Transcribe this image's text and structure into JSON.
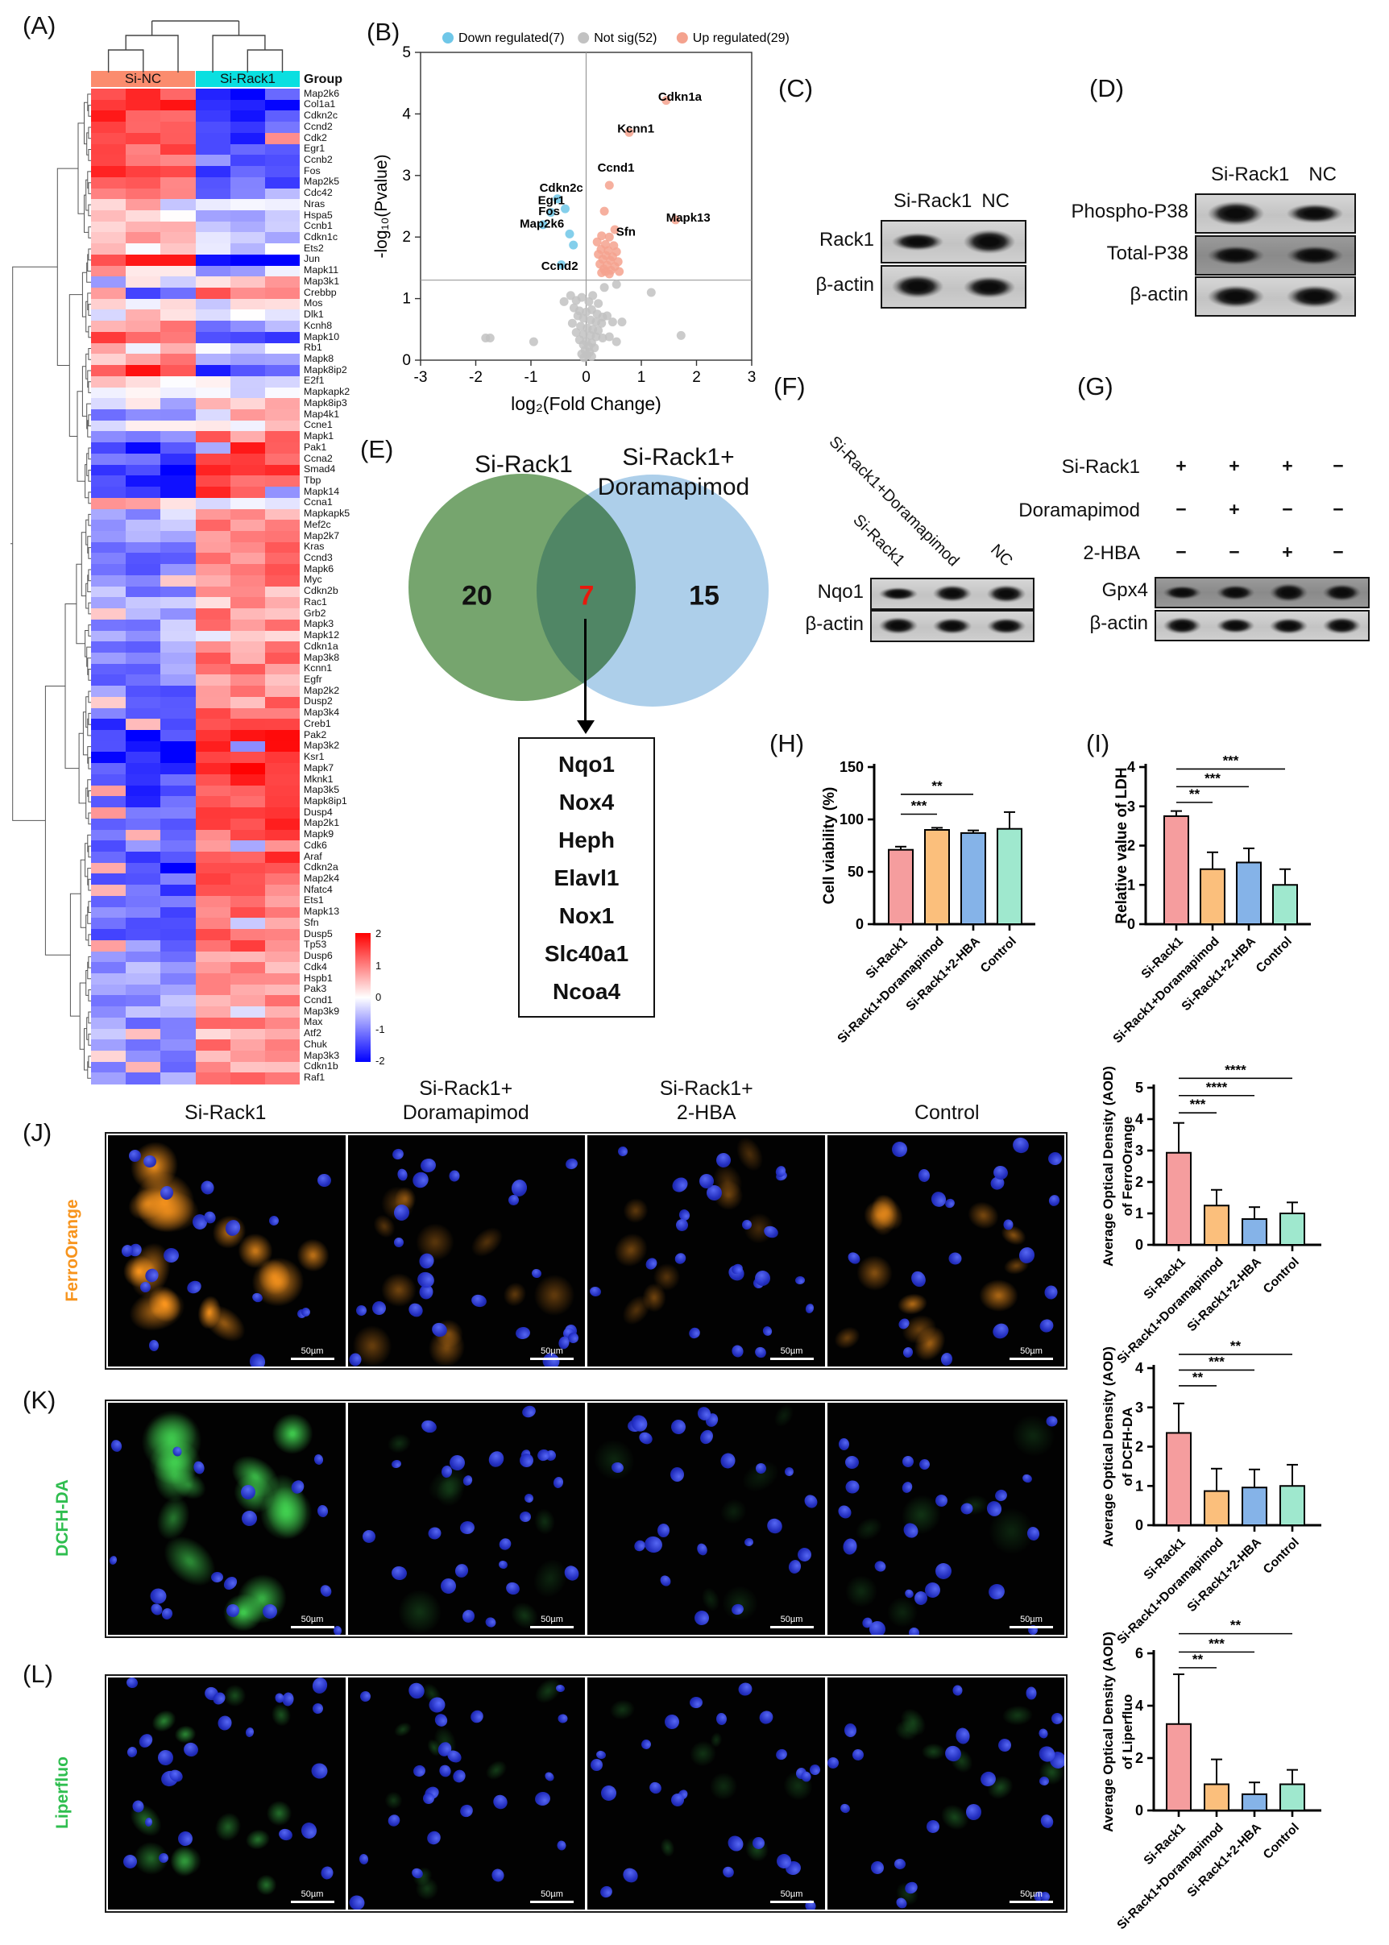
{
  "panels": {
    "a": "(A)",
    "b": "(B)",
    "c": "(C)",
    "d": "(D)",
    "e": "(E)",
    "f": "(F)",
    "g": "(G)",
    "h": "(H)",
    "i": "(I)",
    "j": "(J)",
    "k": "(K)",
    "l": "(L)"
  },
  "heatmap": {
    "group_label": "Group",
    "groups": [
      {
        "label": "Si-NC",
        "color": "#FB8C6E"
      },
      {
        "label": "Si-Rack1",
        "color": "#0ADFE0"
      }
    ],
    "colorbar_ticks": [
      "2",
      "1",
      "0",
      "-1",
      "-2"
    ],
    "colorbar_colors": {
      "high": "#FF0000",
      "mid": "#FFFFFF",
      "low": "#0000FF"
    }
  },
  "bar_categories": [
    "Si-Rack1",
    "Si-Rack1+Doramapimod",
    "Si-Rack1+2-HBA",
    "Control"
  ],
  "bar_colors": [
    "#F59D9E",
    "#FBBF7C",
    "#85B3E8",
    "#9FE8CE"
  ],
  "chart_data": [
    {
      "id": "A",
      "type": "heatmap",
      "title": "",
      "col_groups": [
        "Si-NC",
        "Si-Rack1"
      ],
      "colorbar_range": [
        -2,
        2
      ],
      "genes": [
        "Map2k6",
        "Col1a1",
        "Cdkn2c",
        "Ccnd2",
        "Cdk2",
        "Egr1",
        "Ccnb2",
        "Fos",
        "Map2k5",
        "Cdc42",
        "Nras",
        "Hspa5",
        "Ccnb1",
        "Cdkn1c",
        "Ets2",
        "Jun",
        "Mapk11",
        "Map3k1",
        "Crebbp",
        "Mos",
        "Dlk1",
        "Kcnh8",
        "Mapk10",
        "Rb1",
        "Mapk8",
        "Mapk8ip2",
        "E2f1",
        "Mapkapk2",
        "Mapk8ip3",
        "Map4k1",
        "Ccne1",
        "Mapk1",
        "Pak1",
        "Ccna2",
        "Smad4",
        "Tbp",
        "Mapk14",
        "Ccna1",
        "Mapkapk5",
        "Mef2c",
        "Map2k7",
        "Kras",
        "Ccnd3",
        "Mapk6",
        "Myc",
        "Cdkn2b",
        "Rac1",
        "Grb2",
        "Mapk3",
        "Mapk12",
        "Cdkn1a",
        "Map3k8",
        "Kcnn1",
        "Egfr",
        "Map2k2",
        "Dusp2",
        "Map3k4",
        "Creb1",
        "Pak2",
        "Map3k2",
        "Ksr1",
        "Mapk7",
        "Mknk1",
        "Map3k5",
        "Mapk8ip1",
        "Dusp4",
        "Map2k1",
        "Mapk9",
        "Cdk6",
        "Araf",
        "Cdkn2a",
        "Map2k4",
        "Nfatc4",
        "Ets1",
        "Mapk13",
        "Sfn",
        "Dusp5",
        "Tp53",
        "Dusp6",
        "Cdk4",
        "Hspb1",
        "Pak3",
        "Ccnd1",
        "Map3k9",
        "Max",
        "Atf2",
        "Chuk",
        "Map3k3",
        "Cdkn1b",
        "Raf1"
      ],
      "si_rack1_trend": [
        -1.6,
        -1.6,
        -1.5,
        -1.4,
        -1.5,
        -1.3,
        -1.2,
        -1.5,
        -1.3,
        -0.9,
        -0.5,
        -0.4,
        -0.6,
        -0.5,
        -0.4,
        -1.8,
        -0.5,
        0.4,
        1.2,
        0.0,
        -0.2,
        -0.8,
        -1.2,
        -0.3,
        -0.8,
        -1.5,
        -0.1,
        -0.3,
        0.4,
        0.7,
        0.2,
        0.9,
        1.6,
        1.4,
        1.8,
        1.5,
        1.6,
        -0.4,
        0.6,
        0.8,
        0.9,
        1.1,
        0.9,
        1.0,
        0.9,
        0.8,
        0.6,
        0.9,
        0.8,
        0.5,
        1.0,
        0.9,
        1.0,
        0.9,
        1.0,
        0.9,
        1.0,
        1.3,
        1.7,
        1.8,
        1.8,
        1.6,
        1.5,
        1.4,
        1.3,
        1.2,
        1.5,
        1.3,
        1.2,
        1.4,
        1.7,
        1.3,
        1.2,
        1.1,
        1.2,
        1.1,
        1.2,
        1.1,
        1.0,
        0.9,
        0.9,
        0.8,
        0.9,
        0.8,
        1.0,
        0.7,
        0.8,
        0.9,
        0.9,
        1.0
      ]
    },
    {
      "id": "B",
      "type": "scatter",
      "xlabel": "log₂(Fold Change)",
      "ylabel": "-log₁₀(Pvalue)",
      "xlim": [
        -3,
        3
      ],
      "ylim": [
        0,
        5
      ],
      "xticks": [
        "-3",
        "-2",
        "-1",
        "0",
        "1",
        "2",
        "3"
      ],
      "yticks": [
        "0",
        "1",
        "2",
        "3",
        "4",
        "5"
      ],
      "threshold_y": 1.3,
      "legend": [
        {
          "label": "Down regulated(7)",
          "color": "#6FC7E8"
        },
        {
          "label": "Not sig(52)",
          "color": "#C2C2C2"
        },
        {
          "label": "Up regulated(29)",
          "color": "#F4A28E"
        }
      ],
      "gene_labels": [
        {
          "t": "Cdkn1a",
          "x": 1.7,
          "y": 4.28
        },
        {
          "t": "Kcnn1",
          "x": 0.9,
          "y": 3.76
        },
        {
          "t": "Ccnd1",
          "x": 0.54,
          "y": 3.13
        },
        {
          "t": "Mapk13",
          "x": 1.85,
          "y": 2.32
        },
        {
          "t": "Sfn",
          "x": 0.72,
          "y": 2.09
        },
        {
          "t": "Cdkn2c",
          "x": -0.45,
          "y": 2.8
        },
        {
          "t": "Egr1",
          "x": -0.63,
          "y": 2.6
        },
        {
          "t": "Fos",
          "x": -0.67,
          "y": 2.42
        },
        {
          "t": "Map2k6",
          "x": -0.8,
          "y": 2.22
        },
        {
          "t": "Ccnd2",
          "x": -0.48,
          "y": 1.53
        }
      ],
      "series": {
        "up": [
          [
            1.45,
            4.22
          ],
          [
            0.78,
            3.7
          ],
          [
            0.42,
            2.84
          ],
          [
            0.33,
            2.42
          ],
          [
            1.62,
            2.28
          ],
          [
            0.52,
            2.12
          ],
          [
            0.28,
            2.02
          ],
          [
            0.42,
            2.0
          ],
          [
            0.2,
            1.92
          ],
          [
            0.35,
            1.88
          ],
          [
            0.5,
            1.86
          ],
          [
            0.27,
            1.8
          ],
          [
            0.4,
            1.78
          ],
          [
            0.55,
            1.76
          ],
          [
            0.22,
            1.72
          ],
          [
            0.36,
            1.7
          ],
          [
            0.48,
            1.68
          ],
          [
            0.3,
            1.64
          ],
          [
            0.44,
            1.62
          ],
          [
            0.58,
            1.6
          ],
          [
            0.25,
            1.56
          ],
          [
            0.38,
            1.54
          ],
          [
            0.52,
            1.52
          ],
          [
            0.32,
            1.48
          ],
          [
            0.45,
            1.46
          ],
          [
            0.6,
            1.44
          ],
          [
            0.28,
            1.42
          ],
          [
            0.42,
            1.4
          ],
          [
            0.35,
            1.44
          ]
        ],
        "down": [
          [
            -0.38,
            2.46
          ],
          [
            -0.23,
            1.87
          ],
          [
            -0.52,
            2.62
          ],
          [
            -0.64,
            2.4
          ],
          [
            -0.78,
            2.2
          ],
          [
            -0.45,
            1.55
          ],
          [
            -0.3,
            2.05
          ]
        ],
        "notsig": [
          [
            -1.82,
            0.36
          ],
          [
            -1.74,
            0.36
          ],
          [
            -0.95,
            0.3
          ],
          [
            1.72,
            0.4
          ],
          [
            1.18,
            1.1
          ],
          [
            0.55,
            1.23
          ],
          [
            0.33,
            1.18
          ],
          [
            -0.4,
            0.95
          ],
          [
            -0.28,
            1.05
          ],
          [
            -0.18,
            0.97
          ],
          [
            -0.08,
            1.02
          ],
          [
            0.05,
            0.95
          ],
          [
            0.12,
            1.05
          ],
          [
            0.22,
            0.92
          ],
          [
            -0.22,
            0.85
          ],
          [
            -0.12,
            0.8
          ],
          [
            0.0,
            0.78
          ],
          [
            0.1,
            0.82
          ],
          [
            0.2,
            0.75
          ],
          [
            0.3,
            0.7
          ],
          [
            -0.15,
            0.72
          ],
          [
            -0.05,
            0.68
          ],
          [
            0.08,
            0.65
          ],
          [
            0.18,
            0.62
          ],
          [
            0.28,
            0.6
          ],
          [
            0.38,
            0.72
          ],
          [
            0.48,
            0.62
          ],
          [
            0.65,
            0.62
          ],
          [
            -0.25,
            0.6
          ],
          [
            -0.1,
            0.55
          ],
          [
            0.02,
            0.52
          ],
          [
            0.12,
            0.5
          ],
          [
            0.22,
            0.48
          ],
          [
            -0.18,
            0.45
          ],
          [
            -0.05,
            0.42
          ],
          [
            0.08,
            0.4
          ],
          [
            0.18,
            0.38
          ],
          [
            0.3,
            0.36
          ],
          [
            0.42,
            0.38
          ],
          [
            -0.12,
            0.33
          ],
          [
            0.0,
            0.3
          ],
          [
            0.1,
            0.28
          ],
          [
            -0.05,
            0.25
          ],
          [
            0.05,
            0.22
          ],
          [
            0.15,
            0.2
          ],
          [
            -0.02,
            0.16
          ],
          [
            0.06,
            0.13
          ],
          [
            -0.08,
            0.1
          ],
          [
            0.02,
            0.08
          ],
          [
            0.1,
            0.06
          ],
          [
            -0.04,
            0.04
          ],
          [
            0.55,
            0.3
          ]
        ]
      }
    },
    {
      "id": "H",
      "type": "bar",
      "ylabel": "Cell viability (%)",
      "categories": [
        "Si-Rack1",
        "Si-Rack1+Doramapimod",
        "Si-Rack1+2-HBA",
        "Control"
      ],
      "values": [
        71,
        90,
        87,
        91
      ],
      "errors": [
        3,
        2,
        2.5,
        16
      ],
      "ylim": [
        0,
        150
      ],
      "yticks": [
        0,
        50,
        100,
        150
      ],
      "sig": [
        {
          "a": 0,
          "b": 1,
          "label": "***",
          "y": 105
        },
        {
          "a": 0,
          "b": 2,
          "label": "**",
          "y": 124
        }
      ]
    },
    {
      "id": "I",
      "type": "bar",
      "ylabel": "Relative value of LDH",
      "categories": [
        "Si-Rack1",
        "Si-Rack1+Doramapimod",
        "Si-Rack1+2-HBA",
        "Control"
      ],
      "values": [
        2.75,
        1.4,
        1.57,
        1.0
      ],
      "errors": [
        0.13,
        0.43,
        0.36,
        0.4
      ],
      "ylim": [
        0,
        4
      ],
      "yticks": [
        0,
        1,
        2,
        3,
        4
      ],
      "sig": [
        {
          "a": 0,
          "b": 1,
          "label": "**",
          "y": 3.1
        },
        {
          "a": 0,
          "b": 2,
          "label": "***",
          "y": 3.5
        },
        {
          "a": 0,
          "b": 3,
          "label": "***",
          "y": 3.95
        }
      ]
    },
    {
      "id": "J",
      "type": "bar",
      "ylabel": [
        "Average Optical Density (AOD)",
        "of FerroOrange"
      ],
      "categories": [
        "Si-Rack1",
        "Si-Rack1+Doramapimod",
        "Si-Rack1+2-HBA",
        "Control"
      ],
      "values": [
        2.93,
        1.25,
        0.82,
        1.0
      ],
      "errors": [
        0.95,
        0.5,
        0.38,
        0.35
      ],
      "ylim": [
        0,
        5
      ],
      "yticks": [
        0,
        1,
        2,
        3,
        4,
        5
      ],
      "sig": [
        {
          "a": 0,
          "b": 1,
          "label": "***",
          "y": 4.2
        },
        {
          "a": 0,
          "b": 2,
          "label": "****",
          "y": 4.75
        },
        {
          "a": 0,
          "b": 3,
          "label": "****",
          "y": 5.3
        }
      ]
    },
    {
      "id": "K",
      "type": "bar",
      "ylabel": [
        "Average Optical Density (AOD)",
        "of DCFH-DA"
      ],
      "categories": [
        "Si-Rack1",
        "Si-Rack1+Doramapimod",
        "Si-Rack1+2-HBA",
        "Control"
      ],
      "values": [
        2.35,
        0.87,
        0.96,
        1.0
      ],
      "errors": [
        0.75,
        0.57,
        0.46,
        0.54
      ],
      "ylim": [
        0,
        4
      ],
      "yticks": [
        0,
        1,
        2,
        3,
        4
      ],
      "sig": [
        {
          "a": 0,
          "b": 1,
          "label": "**",
          "y": 3.55
        },
        {
          "a": 0,
          "b": 2,
          "label": "***",
          "y": 3.95
        },
        {
          "a": 0,
          "b": 3,
          "label": "**",
          "y": 4.35
        }
      ]
    },
    {
      "id": "L",
      "type": "bar",
      "ylabel": [
        "Average Optical Density (AOD)",
        "of Liperfluo"
      ],
      "categories": [
        "Si-Rack1",
        "Si-Rack1+Doramapimod",
        "Si-Rack1+2-HBA",
        "Control"
      ],
      "values": [
        3.3,
        1.0,
        0.62,
        1.0
      ],
      "errors": [
        1.9,
        0.95,
        0.45,
        0.55
      ],
      "ylim": [
        0,
        6
      ],
      "yticks": [
        0,
        2,
        4,
        6
      ],
      "sig": [
        {
          "a": 0,
          "b": 1,
          "label": "**",
          "y": 5.45
        },
        {
          "a": 0,
          "b": 2,
          "label": "***",
          "y": 6.05
        },
        {
          "a": 0,
          "b": 3,
          "label": "**",
          "y": 6.75
        }
      ]
    }
  ],
  "wb": {
    "c": {
      "header": [
        "Si-Rack1",
        "NC"
      ],
      "rows": [
        {
          "label": "Rack1",
          "bands": [
            0.8,
            1.15
          ]
        },
        {
          "label": "β-actin",
          "bands": [
            1.1,
            1.0
          ]
        }
      ]
    },
    "d": {
      "header": [
        "Si-Rack1",
        "NC"
      ],
      "rows": [
        {
          "label": "Phospho-P38",
          "bands": [
            1.2,
            0.9
          ]
        },
        {
          "label": "Total-P38",
          "bands": [
            0.9,
            0.95
          ],
          "dark": true
        },
        {
          "label": "β-actin",
          "bands": [
            1.15,
            1.1
          ]
        }
      ]
    },
    "f": {
      "lanes": [
        "Si-Rack1",
        "Si-Rack1+Doramapimod",
        "NC"
      ],
      "rows": [
        {
          "label": "Nqo1",
          "bands": [
            0.7,
            1.0,
            1.05
          ]
        },
        {
          "label": "β-actin",
          "bands": [
            1.0,
            0.95,
            0.9
          ]
        }
      ]
    },
    "g": {
      "table": [
        {
          "label": "Si-Rack1",
          "cells": [
            "+",
            "+",
            "+",
            "−"
          ]
        },
        {
          "label": "Doramapimod",
          "cells": [
            "−",
            "+",
            "−",
            "−"
          ]
        },
        {
          "label": "2-HBA",
          "cells": [
            "−",
            "−",
            "+",
            "−"
          ]
        }
      ],
      "rows": [
        {
          "label": "Gpx4",
          "bands": [
            0.7,
            0.9,
            1.1,
            1.0
          ],
          "dark": true
        },
        {
          "label": "β-actin",
          "bands": [
            1.0,
            0.9,
            0.95,
            1.0
          ]
        }
      ]
    }
  },
  "venn": {
    "left_label": "Si-Rack1",
    "right_label_1": "Si-Rack1+",
    "right_label_2": "Doramapimod",
    "left_count": "20",
    "overlap_count": "7",
    "right_count": "15",
    "left_color": "rgba(111,160,102,0.95)",
    "right_color": "rgba(169,204,233,0.95)",
    "overlap_count_color": "#E8190C",
    "genes": [
      "Nqo1",
      "Nox4",
      "Heph",
      "Elavl1",
      "Nox1",
      "Slc40a1",
      "Ncoa4"
    ]
  },
  "microscopy": {
    "col_headers": [
      [
        "Si-Rack1"
      ],
      [
        "Si-Rack1+",
        "Doramapimod"
      ],
      [
        "Si-Rack1+",
        "2-HBA"
      ],
      [
        "Control"
      ]
    ],
    "rows": [
      {
        "panel": "J",
        "label": "FerroOrange",
        "label_color": "#F7941D",
        "stain": "orange"
      },
      {
        "panel": "K",
        "label": "DCFH-DA",
        "label_color": "#2FBE4F",
        "stain": "green"
      },
      {
        "panel": "L",
        "label": "Liperfluo",
        "label_color": "#2FBE4F",
        "stain": "green"
      }
    ],
    "cells": {
      "J": [
        {
          "cyto": 15,
          "min": 40,
          "max": 80,
          "alpha": 0.95,
          "nuc": 20
        },
        {
          "cyto": 11,
          "min": 30,
          "max": 55,
          "alpha": 0.5,
          "nuc": 26
        },
        {
          "cyto": 9,
          "min": 28,
          "max": 50,
          "alpha": 0.45,
          "nuc": 24
        },
        {
          "cyto": 12,
          "min": 32,
          "max": 60,
          "alpha": 0.65,
          "nuc": 20
        }
      ],
      "K": [
        {
          "cyto": 14,
          "min": 45,
          "max": 90,
          "alpha": 0.85,
          "nuc": 18
        },
        {
          "cyto": 7,
          "min": 30,
          "max": 60,
          "alpha": 0.22,
          "nuc": 26
        },
        {
          "cyto": 6,
          "min": 30,
          "max": 55,
          "alpha": 0.18,
          "nuc": 24
        },
        {
          "cyto": 7,
          "min": 30,
          "max": 60,
          "alpha": 0.22,
          "nuc": 26
        }
      ],
      "L": [
        {
          "cyto": 12,
          "min": 25,
          "max": 50,
          "alpha": 0.55,
          "nuc": 24
        },
        {
          "cyto": 9,
          "min": 22,
          "max": 42,
          "alpha": 0.3,
          "nuc": 26
        },
        {
          "cyto": 7,
          "min": 20,
          "max": 40,
          "alpha": 0.28,
          "nuc": 24
        },
        {
          "cyto": 9,
          "min": 22,
          "max": 42,
          "alpha": 0.3,
          "nuc": 24
        }
      ]
    },
    "scale_bar_label": "50µm"
  }
}
